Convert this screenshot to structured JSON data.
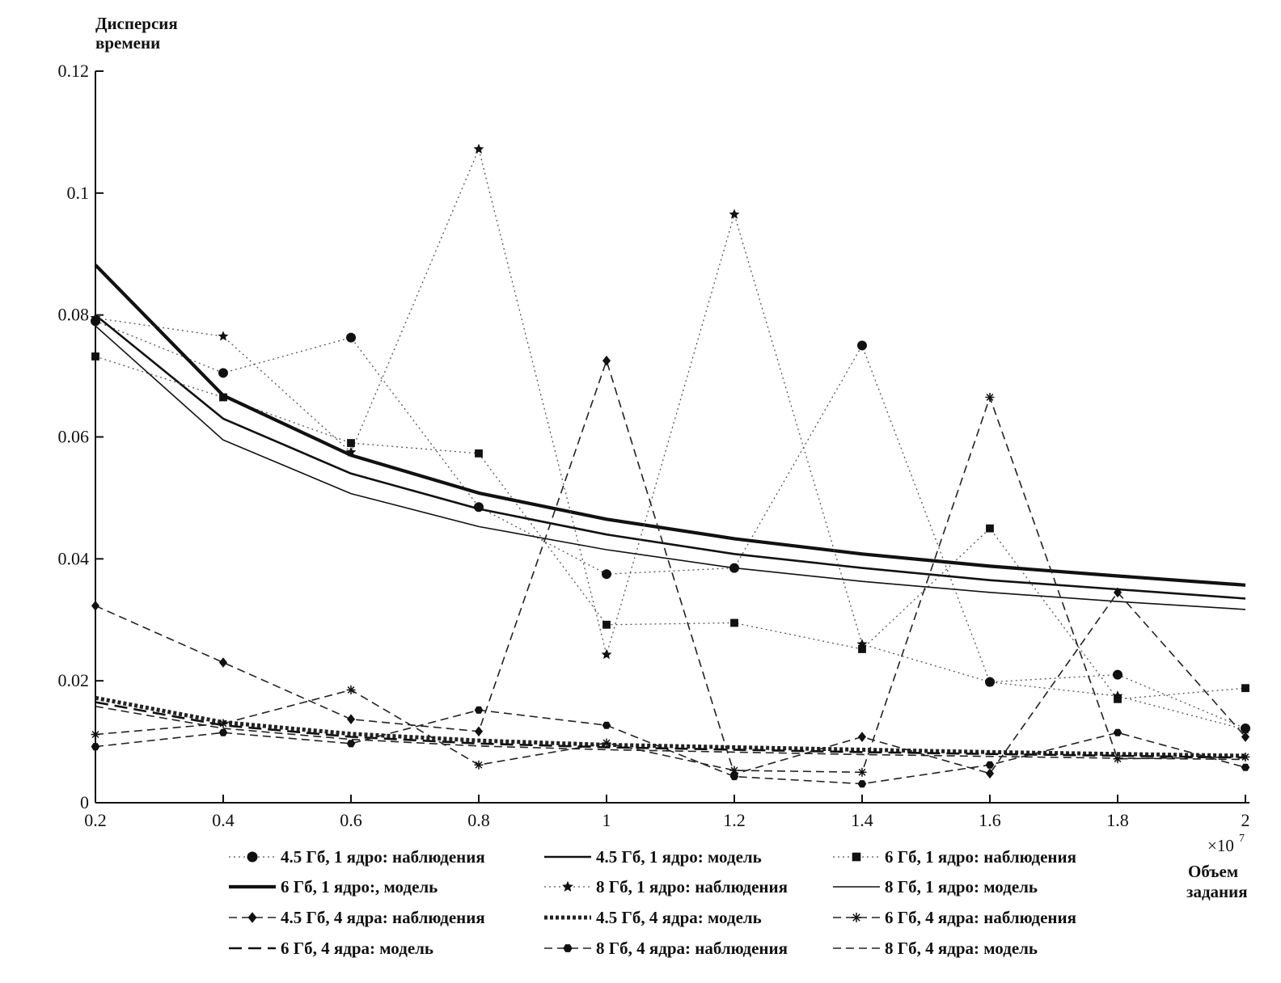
{
  "chart_data": {
    "type": "line",
    "title": "",
    "ylabel": [
      "Дисперсия",
      "времени"
    ],
    "xlabel": [
      "Объем",
      "задания"
    ],
    "x_multiplier": "×10",
    "x_multiplier_exp": "7",
    "x": [
      0.2,
      0.4,
      0.6,
      0.8,
      1.0,
      1.2,
      1.4,
      1.6,
      1.8,
      2.0
    ],
    "xlim": [
      0.2,
      2.0
    ],
    "ylim": [
      0,
      0.12
    ],
    "xticks": [
      "0.2",
      "0.4",
      "0.6",
      "0.8",
      "1",
      "1.2",
      "1.4",
      "1.6",
      "1.8",
      "2"
    ],
    "yticks": [
      "0",
      "0.02",
      "0.04",
      "0.06",
      "0.08",
      "0.1",
      "0.12"
    ],
    "ytick_values": [
      0,
      0.02,
      0.04,
      0.06,
      0.08,
      0.1,
      0.12
    ],
    "grid": false,
    "legend_position": "bottom",
    "series": [
      {
        "name": "4.5 Гб, 1 ядро: наблюдения",
        "style": "dotted",
        "marker": "circle",
        "values": [
          0.079,
          0.0705,
          0.0763,
          0.0485,
          0.0375,
          0.0385,
          0.075,
          0.0198,
          0.021,
          0.0122
        ]
      },
      {
        "name": "4.5 Гб, 1 ядро: модель",
        "style": "solid-medium",
        "marker": "none",
        "values": [
          0.08,
          0.063,
          0.054,
          0.0482,
          0.044,
          0.0408,
          0.0385,
          0.0365,
          0.035,
          0.0335
        ]
      },
      {
        "name": "6 Гб, 1 ядро: наблюдения",
        "style": "dotted",
        "marker": "square",
        "values": [
          0.0732,
          0.0665,
          0.059,
          0.0573,
          0.0292,
          0.0295,
          0.0252,
          0.045,
          0.017,
          0.0188
        ]
      },
      {
        "name": "6 Гб, 1 ядро:, модель",
        "style": "solid-thick",
        "marker": "none",
        "values": [
          0.0882,
          0.0668,
          0.057,
          0.0508,
          0.0465,
          0.0433,
          0.0408,
          0.0388,
          0.0372,
          0.0357
        ]
      },
      {
        "name": "8 Гб, 1 ядро: наблюдения",
        "style": "dotted",
        "marker": "star",
        "values": [
          0.0795,
          0.0765,
          0.0575,
          0.1072,
          0.0243,
          0.0965,
          0.026,
          0.0198,
          0.0175,
          0.012
        ]
      },
      {
        "name": "8 Гб, 1 ядро: модель",
        "style": "solid-thin",
        "marker": "none",
        "values": [
          0.0782,
          0.0595,
          0.0507,
          0.0453,
          0.0415,
          0.0385,
          0.0363,
          0.0345,
          0.033,
          0.0317
        ]
      },
      {
        "name": "4.5 Гб, 4 ядра: наблюдения",
        "style": "dashed",
        "marker": "diamond",
        "values": [
          0.0323,
          0.023,
          0.0137,
          0.0117,
          0.0725,
          0.0047,
          0.0108,
          0.0048,
          0.0345,
          0.0108
        ]
      },
      {
        "name": "4.5 Гб, 4 ядра: модель",
        "style": "thick-dotted",
        "marker": "none",
        "values": [
          0.0172,
          0.0132,
          0.0113,
          0.0102,
          0.0095,
          0.0091,
          0.0087,
          0.0083,
          0.008,
          0.0077
        ]
      },
      {
        "name": "6 Гб, 4 ядра: наблюдения",
        "style": "dashed",
        "marker": "asterisk",
        "values": [
          0.0112,
          0.013,
          0.0185,
          0.0062,
          0.0098,
          0.0053,
          0.005,
          0.0665,
          0.0072,
          0.0075
        ]
      },
      {
        "name": "6 Гб, 4 ядра: модель",
        "style": "long-dashed",
        "marker": "none",
        "values": [
          0.0165,
          0.0127,
          0.0108,
          0.0097,
          0.0091,
          0.0087,
          0.0083,
          0.008,
          0.0077,
          0.0074
        ]
      },
      {
        "name": "8 Гб, 4 ядра: наблюдения",
        "style": "dashed",
        "marker": "hexagon",
        "values": [
          0.0092,
          0.0115,
          0.0097,
          0.0152,
          0.0127,
          0.0043,
          0.0031,
          0.0062,
          0.0115,
          0.0058
        ]
      },
      {
        "name": "8 Гб, 4 ядра: модель",
        "style": "dashed",
        "marker": "none",
        "values": [
          0.0158,
          0.0122,
          0.0104,
          0.0093,
          0.0087,
          0.0083,
          0.0079,
          0.0076,
          0.0073,
          0.0071
        ]
      }
    ]
  }
}
